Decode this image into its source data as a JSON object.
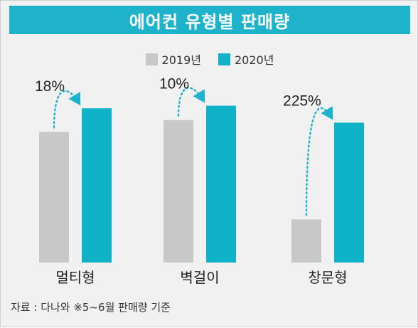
{
  "header": {
    "title": "에어컨 유형별 판매량"
  },
  "legend": {
    "item_2019": "2019년",
    "item_2020": "2020년"
  },
  "source": "자료 : 다나와 ※5~6월 판매량 기준",
  "colors": {
    "header": "#1fb3cb",
    "series_2019": "#c8c8c8",
    "series_2020": "#0fb2c6",
    "background": "#f1f1f1",
    "arrow": "#1fb3cb"
  },
  "chart_data": {
    "type": "bar",
    "title": "에어컨 유형별 판매량",
    "categories": [
      "멀티형",
      "벽걸이",
      "창문형"
    ],
    "series": [
      {
        "name": "2019년",
        "values": [
          100,
          109,
          33
        ]
      },
      {
        "name": "2020년",
        "values": [
          118,
          120,
          107
        ]
      }
    ],
    "annotations": [
      "18%",
      "10%",
      "225%"
    ],
    "ylim": [
      0,
      135
    ],
    "grid": false,
    "legend_position": "top-center",
    "xlabel": "",
    "ylabel": ""
  }
}
